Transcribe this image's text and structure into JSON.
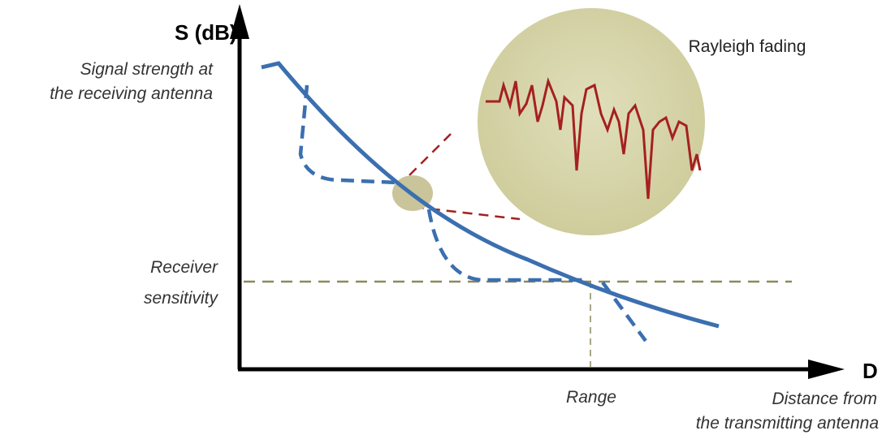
{
  "axes": {
    "y": {
      "label": "S (dB)",
      "description": [
        "Signal strength at",
        "the receiving antenna"
      ]
    },
    "x": {
      "label": "D",
      "description": [
        "Distance from",
        "the transmitting antenna"
      ]
    }
  },
  "annotations": {
    "fading": "Rayleigh fading",
    "sensitivity": [
      "Receiver",
      "sensitivity"
    ],
    "range": "Range"
  }
}
